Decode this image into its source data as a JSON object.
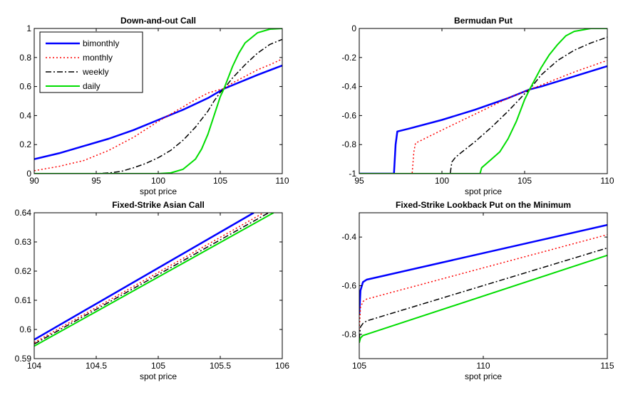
{
  "chart_data": [
    {
      "type": "line",
      "title": "Down-and-out Call",
      "xlabel": "spot price",
      "ylabel": "",
      "xlim": [
        90,
        110
      ],
      "ylim": [
        0,
        1
      ],
      "xticks": [
        90,
        95,
        100,
        105,
        110
      ],
      "yticks": [
        0,
        0.2,
        0.4,
        0.6,
        0.8,
        1
      ],
      "xtick_labels": [
        "90",
        "95",
        "100",
        "105",
        "110"
      ],
      "ytick_labels": [
        "0",
        "0.2",
        "0.4",
        "0.6",
        "0.8",
        "1"
      ],
      "legend": {
        "position": "top-left",
        "entries": [
          "bimonthly",
          "monthly",
          "weekly",
          "daily"
        ]
      },
      "series": [
        {
          "name": "bimonthly",
          "color": "#0000ff",
          "style": "solid",
          "width": 2.5,
          "x": [
            90,
            92,
            94,
            96,
            98,
            100,
            102,
            104,
            105.3,
            106,
            108,
            110
          ],
          "y": [
            0.1,
            0.14,
            0.19,
            0.24,
            0.3,
            0.37,
            0.44,
            0.52,
            0.585,
            0.61,
            0.68,
            0.745
          ]
        },
        {
          "name": "monthly",
          "color": "#ff0000",
          "style": "dotted",
          "width": 1.5,
          "x": [
            90,
            92,
            94,
            96,
            98,
            100,
            101,
            102,
            103,
            104,
            105,
            105.3,
            106,
            107,
            108,
            109,
            110
          ],
          "y": [
            0.02,
            0.05,
            0.09,
            0.16,
            0.25,
            0.36,
            0.41,
            0.46,
            0.51,
            0.555,
            0.58,
            0.585,
            0.625,
            0.67,
            0.715,
            0.75,
            0.79
          ]
        },
        {
          "name": "weekly",
          "color": "#000000",
          "style": "dashdot",
          "width": 1.5,
          "x": [
            90,
            95,
            96,
            97,
            98,
            99,
            100,
            101,
            102,
            103,
            104,
            104.5,
            105,
            105.3,
            106,
            107,
            108,
            109,
            110
          ],
          "y": [
            0,
            0,
            0.005,
            0.015,
            0.04,
            0.07,
            0.11,
            0.16,
            0.23,
            0.32,
            0.43,
            0.5,
            0.56,
            0.585,
            0.66,
            0.75,
            0.83,
            0.89,
            0.925
          ]
        },
        {
          "name": "daily",
          "color": "#00dd00",
          "style": "solid",
          "width": 2,
          "x": [
            90,
            100,
            101,
            102,
            103,
            103.5,
            104,
            104.5,
            105,
            105.3,
            106,
            106.5,
            107,
            108,
            109,
            110
          ],
          "y": [
            0,
            0,
            0.005,
            0.03,
            0.1,
            0.17,
            0.27,
            0.4,
            0.53,
            0.585,
            0.74,
            0.83,
            0.9,
            0.97,
            0.995,
            1.0
          ]
        }
      ]
    },
    {
      "type": "line",
      "title": "Bermudan Put",
      "xlabel": "spot price",
      "ylabel": "",
      "xlim": [
        95,
        110
      ],
      "ylim": [
        -1,
        0
      ],
      "xticks": [
        95,
        100,
        105,
        110
      ],
      "yticks": [
        -1,
        -0.8,
        -0.6,
        -0.4,
        -0.2,
        0
      ],
      "xtick_labels": [
        "95",
        "100",
        "105",
        "110"
      ],
      "ytick_labels": [
        "-1",
        "-0.8",
        "-0.6",
        "-0.4",
        "-0.2",
        "0"
      ],
      "series": [
        {
          "name": "bimonthly",
          "color": "#0000ff",
          "style": "solid",
          "width": 2.5,
          "x": [
            95,
            97.1,
            97.2,
            97.3,
            98,
            100,
            102,
            104,
            105.3,
            106,
            108,
            110
          ],
          "y": [
            -1,
            -1,
            -0.8,
            -0.71,
            -0.69,
            -0.63,
            -0.56,
            -0.48,
            -0.42,
            -0.4,
            -0.33,
            -0.26
          ]
        },
        {
          "name": "monthly",
          "color": "#ff0000",
          "style": "dotted",
          "width": 1.5,
          "x": [
            95,
            98.2,
            98.3,
            98.4,
            100,
            102,
            104,
            105.3,
            106,
            108,
            110
          ],
          "y": [
            -1,
            -1,
            -0.85,
            -0.79,
            -0.7,
            -0.59,
            -0.48,
            -0.42,
            -0.39,
            -0.3,
            -0.22
          ]
        },
        {
          "name": "weekly",
          "color": "#000000",
          "style": "dashdot",
          "width": 1.5,
          "x": [
            95,
            100.5,
            100.6,
            100.8,
            101,
            102,
            103,
            104,
            105,
            105.3,
            106,
            107,
            108,
            109,
            110
          ],
          "y": [
            -1,
            -1,
            -0.92,
            -0.89,
            -0.87,
            -0.78,
            -0.68,
            -0.57,
            -0.45,
            -0.42,
            -0.32,
            -0.22,
            -0.15,
            -0.1,
            -0.06
          ]
        },
        {
          "name": "daily",
          "color": "#00dd00",
          "style": "solid",
          "width": 2,
          "x": [
            95,
            102.3,
            102.4,
            102.7,
            103,
            103.5,
            104,
            104.5,
            105,
            105.3,
            106,
            106.5,
            107,
            107.5,
            108,
            109,
            110
          ],
          "y": [
            -1,
            -1,
            -0.96,
            -0.93,
            -0.9,
            -0.85,
            -0.76,
            -0.64,
            -0.49,
            -0.42,
            -0.27,
            -0.18,
            -0.11,
            -0.05,
            -0.02,
            0,
            0
          ]
        }
      ]
    },
    {
      "type": "line",
      "title": "Fixed-Strike Asian Call",
      "xlabel": "spot price",
      "ylabel": "",
      "xlim": [
        104,
        106
      ],
      "ylim": [
        0.59,
        0.64
      ],
      "xticks": [
        104,
        104.5,
        105,
        105.5,
        106
      ],
      "yticks": [
        0.59,
        0.6,
        0.61,
        0.62,
        0.63,
        0.64
      ],
      "xtick_labels": [
        "104",
        "104.5",
        "105",
        "105.5",
        "106"
      ],
      "ytick_labels": [
        "0.59",
        "0.6",
        "0.61",
        "0.62",
        "0.63",
        "0.64"
      ],
      "series": [
        {
          "name": "bimonthly",
          "color": "#0000ff",
          "style": "solid",
          "width": 2.5,
          "x": [
            104,
            105.77
          ],
          "y": [
            0.5965,
            0.64
          ]
        },
        {
          "name": "monthly",
          "color": "#ff0000",
          "style": "dotted",
          "width": 1.5,
          "x": [
            104,
            105.85
          ],
          "y": [
            0.5955,
            0.64
          ]
        },
        {
          "name": "weekly",
          "color": "#000000",
          "style": "dashdot",
          "width": 1.5,
          "x": [
            104,
            105.89
          ],
          "y": [
            0.595,
            0.64
          ]
        },
        {
          "name": "daily",
          "color": "#00dd00",
          "style": "solid",
          "width": 2,
          "x": [
            104,
            105.93
          ],
          "y": [
            0.5943,
            0.64
          ]
        }
      ]
    },
    {
      "type": "line",
      "title": "Fixed-Strike Lookback Put on the Minimum",
      "xlabel": "spot price",
      "ylabel": "",
      "xlim": [
        105,
        115
      ],
      "ylim": [
        -0.9,
        -0.3
      ],
      "xticks": [
        105,
        110,
        115
      ],
      "yticks": [
        -0.8,
        -0.6,
        -0.4
      ],
      "xtick_labels": [
        "105",
        "110",
        "115"
      ],
      "ytick_labels": [
        "-0.8",
        "-0.6",
        "-0.4"
      ],
      "series": [
        {
          "name": "bimonthly",
          "color": "#0000ff",
          "style": "solid",
          "width": 2.5,
          "x": [
            105,
            105.05,
            105.15,
            105.3,
            115
          ],
          "y": [
            -0.72,
            -0.62,
            -0.585,
            -0.575,
            -0.35
          ]
        },
        {
          "name": "monthly",
          "color": "#ff0000",
          "style": "dotted",
          "width": 1.5,
          "x": [
            105,
            105.05,
            105.15,
            105.3,
            115
          ],
          "y": [
            -0.78,
            -0.69,
            -0.665,
            -0.655,
            -0.39
          ]
        },
        {
          "name": "weekly",
          "color": "#000000",
          "style": "dashdot",
          "width": 1.5,
          "x": [
            105,
            105.05,
            105.15,
            105.3,
            115
          ],
          "y": [
            -0.82,
            -0.77,
            -0.755,
            -0.745,
            -0.445
          ]
        },
        {
          "name": "daily",
          "color": "#00dd00",
          "style": "solid",
          "width": 2,
          "x": [
            105,
            105.05,
            105.15,
            105.3,
            115
          ],
          "y": [
            -0.835,
            -0.815,
            -0.805,
            -0.8,
            -0.475
          ]
        }
      ]
    }
  ]
}
